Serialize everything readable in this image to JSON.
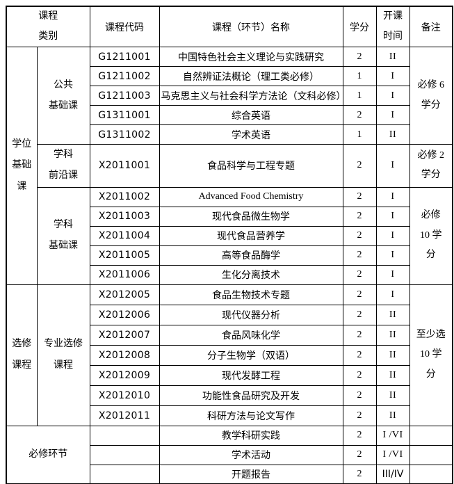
{
  "table": {
    "header": {
      "category": "课程\n类别",
      "code": "课程代码",
      "name": "课程（环节）名称",
      "credits": "学分",
      "semester": "开课\n时间",
      "remarks": "备注"
    },
    "categories": {
      "degree_basic": "学位\n基础\n课",
      "public_basic": "公共\n基础课",
      "subject_frontier": "学科\n前沿课",
      "subject_basic": "学科\n基础课",
      "elective": "选修\n课程",
      "professional_elective": "专业选修\n课程",
      "required_steps": "必修环节"
    },
    "remarks": {
      "public_basic": "必修 6\n学分",
      "subject_frontier": "必修 2\n学分",
      "subject_basic": "必修\n10 学\n分",
      "professional_elective": "至少选\n10 学\n分"
    },
    "rows": [
      {
        "code": "G1211001",
        "name": "中国特色社会主义理论与实践研究",
        "credits": "2",
        "semester": "II"
      },
      {
        "code": "G1211002",
        "name": "自然辨证法概论（理工类必修）",
        "credits": "1",
        "semester": "I"
      },
      {
        "code": "G1211003",
        "name": "马克思主义与社会科学方法论（文科必修）",
        "credits": "1",
        "semester": "I"
      },
      {
        "code": "G1311001",
        "name": "综合英语",
        "credits": "2",
        "semester": "I"
      },
      {
        "code": "G1311002",
        "name": "学术英语",
        "credits": "1",
        "semester": "II"
      },
      {
        "code": "X2011001",
        "name": "食品科学与工程专题",
        "credits": "2",
        "semester": "I"
      },
      {
        "code": "X2011002",
        "name": "Advanced Food Chemistry",
        "credits": "2",
        "semester": "I"
      },
      {
        "code": "X2011003",
        "name": "现代食品微生物学",
        "credits": "2",
        "semester": "I"
      },
      {
        "code": "X2011004",
        "name": "现代食品营养学",
        "credits": "2",
        "semester": "I"
      },
      {
        "code": "X2011005",
        "name": "高等食品酶学",
        "credits": "2",
        "semester": "I"
      },
      {
        "code": "X2011006",
        "name": "生化分离技术",
        "credits": "2",
        "semester": "I"
      },
      {
        "code": "X2012005",
        "name": "食品生物技术专题",
        "credits": "2",
        "semester": "I"
      },
      {
        "code": "X2012006",
        "name": "现代仪器分析",
        "credits": "2",
        "semester": "II"
      },
      {
        "code": "X2012007",
        "name": "食品风味化学",
        "credits": "2",
        "semester": "II"
      },
      {
        "code": "X2012008",
        "name": "分子生物学（双语）",
        "credits": "2",
        "semester": "II"
      },
      {
        "code": "X2012009",
        "name": "现代发酵工程",
        "credits": "2",
        "semester": "II"
      },
      {
        "code": "X2012010",
        "name": "功能性食品研究及开发",
        "credits": "2",
        "semester": "II"
      },
      {
        "code": "X2012011",
        "name": "科研方法与论文写作",
        "credits": "2",
        "semester": "II"
      },
      {
        "code": "",
        "name": "教学科研实践",
        "credits": "2",
        "semester": "I /VI"
      },
      {
        "code": "",
        "name": "学术活动",
        "credits": "2",
        "semester": "I /VI"
      },
      {
        "code": "",
        "name": "开题报告",
        "credits": "2",
        "semester": "III/IV"
      }
    ]
  }
}
